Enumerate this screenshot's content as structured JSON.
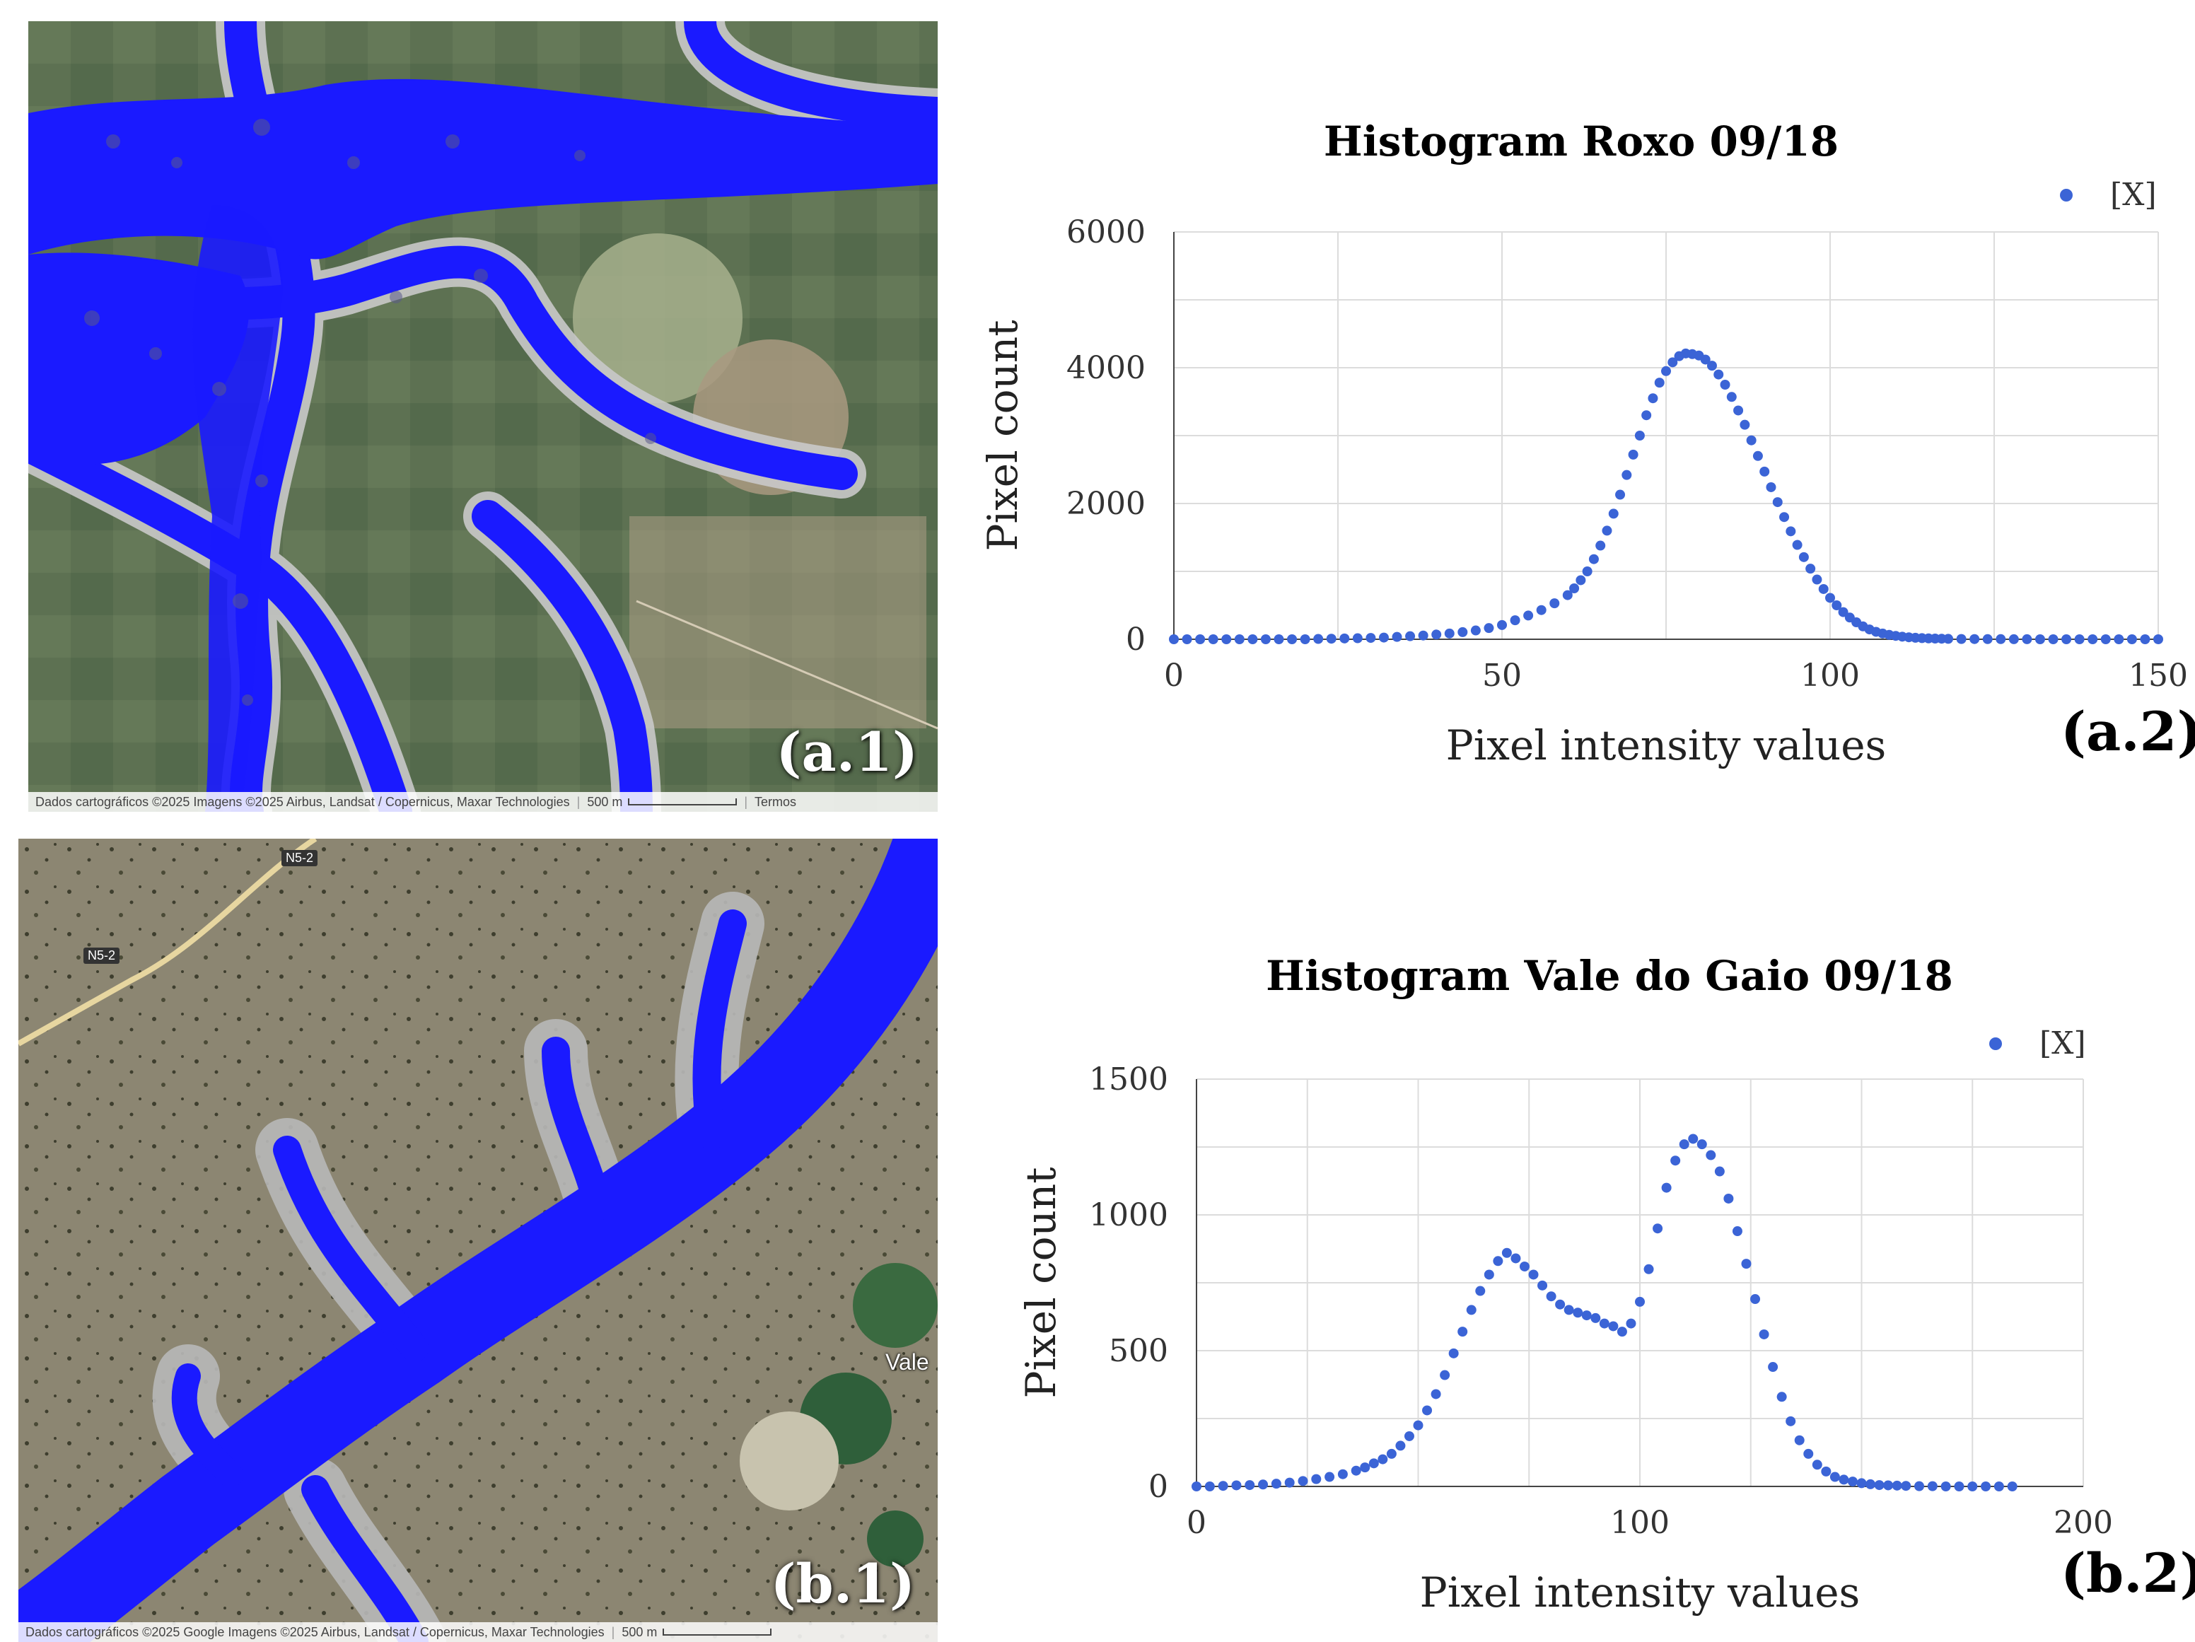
{
  "panels": {
    "a1": {
      "label": "(a.1)",
      "attribution": "Dados cartográficos ©2025 Imagens ©2025 Airbus, Landsat / Copernicus, Maxar Technologies",
      "scale": "500 m",
      "terms": "Termos",
      "colors": {
        "water": "#1a1aff",
        "land": "#5f7456"
      }
    },
    "b1": {
      "label": "(b.1)",
      "attribution": "Dados cartográficos ©2025 Google Imagens ©2025 Airbus, Landsat / Copernicus, Maxar Technologies",
      "scale": "500 m",
      "road_labels": [
        "N5-2",
        "N5-2"
      ],
      "place_label": "Vale",
      "colors": {
        "water": "#1a1aff",
        "land": "#8a8470"
      }
    },
    "a2": {
      "label": "(a.2)"
    },
    "b2": {
      "label": "(b.2)"
    }
  },
  "chart_data": [
    {
      "type": "scatter",
      "title": "Histogram Roxo 09/18",
      "xlabel": "Pixel intensity values",
      "ylabel": "Pixel count",
      "legend": "[X]",
      "legend_position": "top-right",
      "xlim": [
        0,
        150
      ],
      "ylim": [
        0,
        6000
      ],
      "xticks": [
        0,
        50,
        100,
        150
      ],
      "yticks": [
        0,
        2000,
        4000,
        6000
      ],
      "grid": true,
      "color": "#3b64d6",
      "series": [
        {
          "name": "[X]",
          "x": [
            0,
            2,
            4,
            6,
            8,
            10,
            12,
            14,
            16,
            18,
            20,
            22,
            24,
            26,
            28,
            30,
            32,
            34,
            36,
            38,
            40,
            42,
            44,
            46,
            48,
            50,
            52,
            54,
            56,
            58,
            60,
            61,
            62,
            63,
            64,
            65,
            66,
            67,
            68,
            69,
            70,
            71,
            72,
            73,
            74,
            75,
            76,
            77,
            78,
            79,
            80,
            81,
            82,
            83,
            84,
            85,
            86,
            87,
            88,
            89,
            90,
            91,
            92,
            93,
            94,
            95,
            96,
            97,
            98,
            99,
            100,
            101,
            102,
            103,
            104,
            105,
            106,
            107,
            108,
            109,
            110,
            111,
            112,
            113,
            114,
            115,
            116,
            117,
            118,
            120,
            122,
            124,
            126,
            128,
            130,
            132,
            134,
            136,
            138,
            140,
            142,
            144,
            146,
            148,
            150
          ],
          "y": [
            0,
            0,
            0,
            0,
            0,
            0,
            0,
            0,
            0,
            0,
            0,
            5,
            8,
            12,
            15,
            20,
            25,
            35,
            45,
            55,
            70,
            85,
            105,
            130,
            165,
            210,
            280,
            350,
            430,
            530,
            650,
            750,
            870,
            1000,
            1180,
            1380,
            1600,
            1850,
            2130,
            2420,
            2720,
            3000,
            3300,
            3550,
            3780,
            3950,
            4080,
            4170,
            4210,
            4200,
            4180,
            4120,
            4030,
            3900,
            3750,
            3570,
            3370,
            3160,
            2930,
            2700,
            2470,
            2240,
            2020,
            1800,
            1590,
            1390,
            1210,
            1040,
            880,
            740,
            610,
            500,
            400,
            320,
            250,
            190,
            145,
            110,
            85,
            65,
            50,
            38,
            29,
            22,
            17,
            13,
            10,
            8,
            6,
            4,
            3,
            2,
            2,
            1,
            1,
            0,
            0,
            0,
            0,
            0,
            0,
            0,
            0,
            0,
            0
          ]
        }
      ]
    },
    {
      "type": "scatter",
      "title": "Histogram Vale do Gaio 09/18",
      "xlabel": "Pixel intensity values",
      "ylabel": "Pixel count",
      "legend": "[X]",
      "legend_position": "top-right",
      "xlim": [
        0,
        200
      ],
      "ylim": [
        0,
        1500
      ],
      "xticks": [
        0,
        100,
        200
      ],
      "yticks": [
        0,
        500,
        1000,
        1500
      ],
      "grid": true,
      "color": "#3b64d6",
      "series": [
        {
          "name": "[X]",
          "x": [
            0,
            3,
            6,
            9,
            12,
            15,
            18,
            21,
            24,
            27,
            30,
            33,
            36,
            38,
            40,
            42,
            44,
            46,
            48,
            50,
            52,
            54,
            56,
            58,
            60,
            62,
            64,
            66,
            68,
            70,
            72,
            74,
            76,
            78,
            80,
            82,
            84,
            86,
            88,
            90,
            92,
            94,
            96,
            98,
            100,
            102,
            104,
            106,
            108,
            110,
            112,
            114,
            116,
            118,
            120,
            122,
            124,
            126,
            128,
            130,
            132,
            134,
            136,
            138,
            140,
            142,
            144,
            146,
            148,
            150,
            152,
            154,
            156,
            158,
            160,
            163,
            166,
            169,
            172,
            175,
            178,
            181,
            184
          ],
          "y": [
            0,
            0,
            2,
            4,
            5,
            7,
            10,
            14,
            20,
            27,
            35,
            45,
            58,
            70,
            85,
            100,
            120,
            150,
            185,
            225,
            280,
            340,
            410,
            490,
            570,
            650,
            720,
            780,
            830,
            860,
            840,
            810,
            780,
            740,
            700,
            670,
            650,
            640,
            630,
            620,
            600,
            590,
            570,
            600,
            680,
            800,
            950,
            1100,
            1200,
            1260,
            1280,
            1260,
            1220,
            1160,
            1060,
            940,
            820,
            690,
            560,
            440,
            330,
            240,
            170,
            120,
            80,
            55,
            35,
            25,
            18,
            12,
            8,
            5,
            4,
            3,
            2,
            1,
            1,
            0,
            0,
            0,
            0,
            0,
            0
          ]
        }
      ]
    }
  ]
}
